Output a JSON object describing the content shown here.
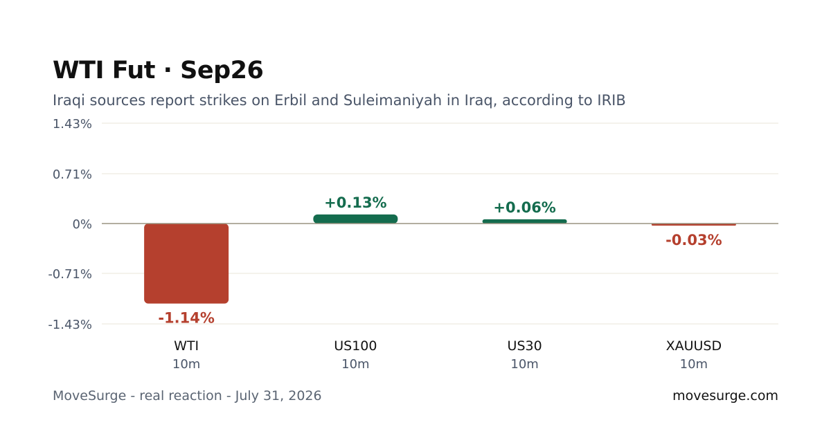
{
  "header": {
    "title": "WTI Fut · Sep26",
    "subtitle": "Iraqi sources report strikes on Erbil and Suleimaniyah in Iraq, according to IRIB"
  },
  "footer": {
    "left": "MoveSurge - real reaction - July 31, 2026",
    "right": "movesurge.com"
  },
  "colors": {
    "positive": "#146c4e",
    "negative": "#b5402e",
    "grid": "#e8e6d8",
    "zero_line": "#9a9480",
    "axis_text": "#4a5568"
  },
  "chart_data": {
    "type": "bar",
    "categories": [
      "WTI",
      "US100",
      "US30",
      "XAUUSD"
    ],
    "sublabels": [
      "10m",
      "10m",
      "10m",
      "10m"
    ],
    "values": [
      -1.14,
      0.13,
      0.06,
      -0.03
    ],
    "value_labels": [
      "-1.14%",
      "+0.13%",
      "+0.06%",
      "-0.03%"
    ],
    "yticks": [
      1.43,
      0.71,
      0,
      -0.71,
      -1.43
    ],
    "ytick_labels": [
      "1.43%",
      "0.71%",
      "0%",
      "-0.71%",
      "-1.43%"
    ],
    "ylim": [
      -1.43,
      1.43
    ],
    "grid": true,
    "legend": "none"
  }
}
